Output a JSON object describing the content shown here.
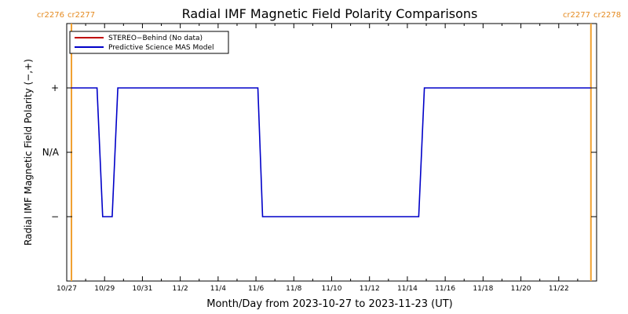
{
  "chart_data": {
    "type": "line",
    "title": "Radial IMF Magnetic Field Polarity Comparisons",
    "xlabel": "Month/Day from 2023-10-27 to 2023-11-23 (UT)",
    "ylabel": "Radial IMF Magnetic Field Polarity (−,+)",
    "x_tick_labels": [
      "10/27",
      "10/29",
      "10/31",
      "11/2",
      "11/4",
      "11/6",
      "11/8",
      "11/10",
      "11/12",
      "11/14",
      "11/16",
      "11/18",
      "11/20",
      "11/22"
    ],
    "y_tick_labels": [
      "+",
      "N/A",
      "−"
    ],
    "y_tick_values": [
      1,
      0,
      -1
    ],
    "ylim": [
      -2,
      2
    ],
    "xlim_days": [
      0,
      28
    ],
    "carrington_lines": [
      {
        "day": 0.25,
        "left_label": "cr2276",
        "right_label": "cr2277"
      },
      {
        "day": 27.7,
        "left_label": "cr2277",
        "right_label": "cr2278"
      }
    ],
    "legend": {
      "placement": "top-left",
      "entries": [
        {
          "label": "STEREO−Behind (No data)",
          "color": "#c00000"
        },
        {
          "label": "Predictive Science MAS Model",
          "color": "#0000c8"
        }
      ]
    },
    "series": [
      {
        "name": "Predictive Science MAS Model",
        "color": "#0000c8",
        "x": [
          0.25,
          1.6,
          1.9,
          2.4,
          2.7,
          10.1,
          10.35,
          18.6,
          18.9,
          27.7
        ],
        "y": [
          1,
          1,
          -1,
          -1,
          1,
          1,
          -1,
          -1,
          1,
          1
        ]
      }
    ],
    "grid": false
  }
}
